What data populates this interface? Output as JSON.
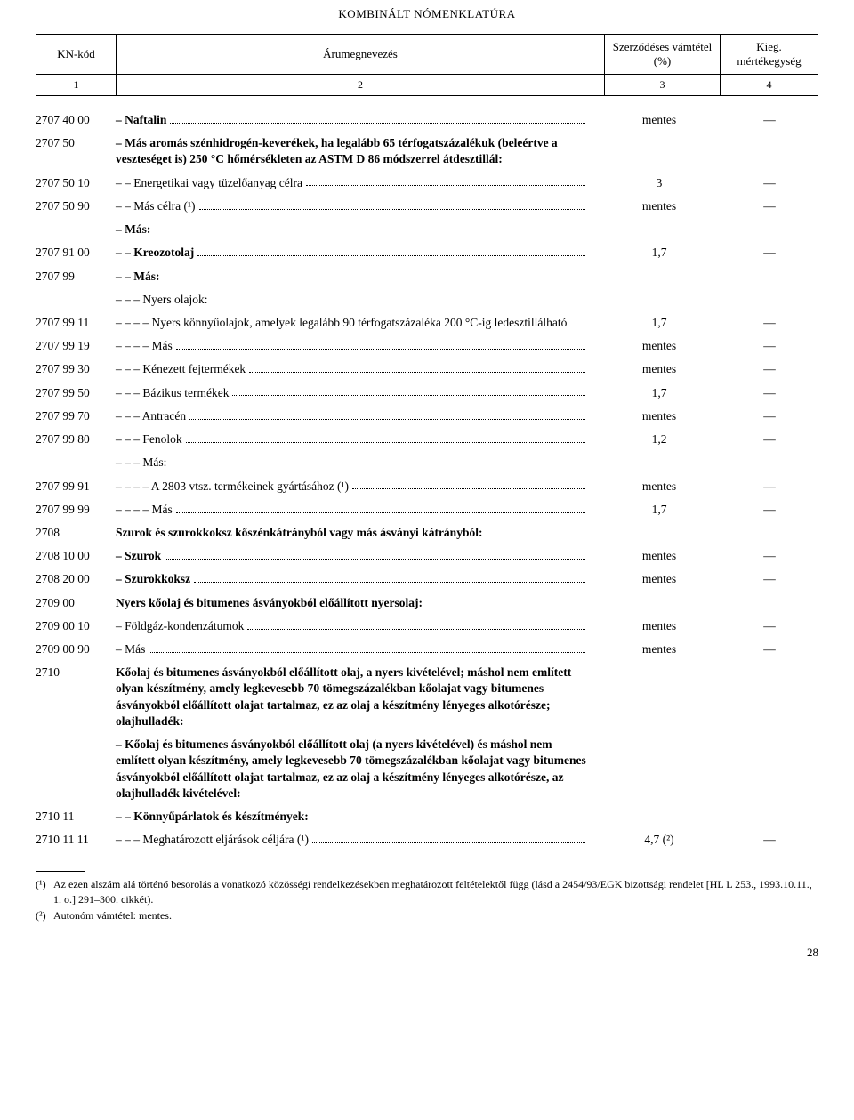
{
  "title": "KOMBINÁLT NÓMENKLATÚRA",
  "header": {
    "cols": [
      "KN-kód",
      "Árumegnevezés",
      "Szerződéses vámtétel (%)",
      "Kieg. mértékegység"
    ],
    "nums": [
      "1",
      "2",
      "3",
      "4"
    ]
  },
  "rows": [
    {
      "code": "2707 40 00",
      "desc": "– Naftalin",
      "duty": "mentes",
      "unit": "—",
      "dots": true,
      "bold": true
    },
    {
      "code": "2707 50",
      "desc": "– Más aromás szénhidrogén-keverékek, ha legalább 65 térfogatszázalékuk (beleértve a veszteséget is) 250 °C hőmérsékleten az ASTM D 86 módszerrel átdesztillál:",
      "duty": "",
      "unit": "",
      "dots": false,
      "bold": true
    },
    {
      "code": "2707 50 10",
      "desc": "– – Energetikai vagy tüzelőanyag célra",
      "duty": "3",
      "unit": "—",
      "dots": true,
      "bold": false
    },
    {
      "code": "2707 50 90",
      "desc": "– – Más célra (¹)",
      "duty": "mentes",
      "unit": "—",
      "dots": true,
      "bold": false
    },
    {
      "code": "",
      "desc": "– Más:",
      "duty": "",
      "unit": "",
      "dots": false,
      "bold": true
    },
    {
      "code": "2707 91 00",
      "desc": "– – Kreozotolaj",
      "duty": "1,7",
      "unit": "—",
      "dots": true,
      "bold": true
    },
    {
      "code": "2707 99",
      "desc": "– – Más:",
      "duty": "",
      "unit": "",
      "dots": false,
      "bold": true
    },
    {
      "code": "",
      "desc": "– – – Nyers olajok:",
      "duty": "",
      "unit": "",
      "dots": false,
      "bold": false
    },
    {
      "code": "2707 99 11",
      "desc": "– – – – Nyers könnyűolajok, amelyek legalább 90 térfogatszázaléka 200 °C-ig ledesztillálható",
      "duty": "1,7",
      "unit": "—",
      "dots": false,
      "bold": false
    },
    {
      "code": "2707 99 19",
      "desc": "– – – – Más",
      "duty": "mentes",
      "unit": "—",
      "dots": true,
      "bold": false
    },
    {
      "code": "2707 99 30",
      "desc": "– – – Kénezett fejtermékek",
      "duty": "mentes",
      "unit": "—",
      "dots": true,
      "bold": false
    },
    {
      "code": "2707 99 50",
      "desc": "– – – Bázikus termékek",
      "duty": "1,7",
      "unit": "—",
      "dots": true,
      "bold": false
    },
    {
      "code": "2707 99 70",
      "desc": "– – – Antracén",
      "duty": "mentes",
      "unit": "—",
      "dots": true,
      "bold": false
    },
    {
      "code": "2707 99 80",
      "desc": "– – – Fenolok",
      "duty": "1,2",
      "unit": "—",
      "dots": true,
      "bold": false
    },
    {
      "code": "",
      "desc": "– – – Más:",
      "duty": "",
      "unit": "",
      "dots": false,
      "bold": false
    },
    {
      "code": "2707 99 91",
      "desc": "– – – – A 2803 vtsz. termékeinek gyártásához (¹)",
      "duty": "mentes",
      "unit": "—",
      "dots": true,
      "bold": false
    },
    {
      "code": "2707 99 99",
      "desc": "– – – – Más",
      "duty": "1,7",
      "unit": "—",
      "dots": true,
      "bold": false
    },
    {
      "code": "2708",
      "desc": "Szurok és szurokkoksz kőszénkátrányból vagy más ásványi kátrányból:",
      "duty": "",
      "unit": "",
      "dots": false,
      "bold": true
    },
    {
      "code": "2708 10 00",
      "desc": "– Szurok",
      "duty": "mentes",
      "unit": "—",
      "dots": true,
      "bold": true
    },
    {
      "code": "2708 20 00",
      "desc": "– Szurokkoksz",
      "duty": "mentes",
      "unit": "—",
      "dots": true,
      "bold": true
    },
    {
      "code": "2709 00",
      "desc": "Nyers kőolaj és bitumenes ásványokból előállított nyersolaj:",
      "duty": "",
      "unit": "",
      "dots": false,
      "bold": true
    },
    {
      "code": "2709 00 10",
      "desc": "– Földgáz-kondenzátumok",
      "duty": "mentes",
      "unit": "—",
      "dots": true,
      "bold": false
    },
    {
      "code": "2709 00 90",
      "desc": "– Más",
      "duty": "mentes",
      "unit": "—",
      "dots": true,
      "bold": false
    },
    {
      "code": "2710",
      "desc": "Kőolaj és bitumenes ásványokból előállított olaj, a nyers kivételével; máshol nem említett olyan készítmény, amely legkevesebb 70 tömegszázalékban kőolajat vagy bitumenes ásványokból előállított olajat tartalmaz, ez az olaj a készítmény lényeges alkotórésze; olajhulladék:",
      "duty": "",
      "unit": "",
      "dots": false,
      "bold": true
    },
    {
      "code": "",
      "desc": "– Kőolaj és bitumenes ásványokból előállított olaj (a nyers kivételével) és máshol nem említett olyan készítmény, amely legkevesebb 70 tömegszázalékban kőolajat vagy bitumenes ásványokból előállított olajat tartalmaz, ez az olaj a készítmény lényeges alkotórésze, az olajhulladék kivételével:",
      "duty": "",
      "unit": "",
      "dots": false,
      "bold": true
    },
    {
      "code": "2710 11",
      "desc": "– – Könnyűpárlatok és készítmények:",
      "duty": "",
      "unit": "",
      "dots": false,
      "bold": true
    },
    {
      "code": "2710 11 11",
      "desc": "– – – Meghatározott eljárások céljára (¹)",
      "duty": "4,7 (²)",
      "unit": "—",
      "dots": true,
      "bold": false
    }
  ],
  "footnotes": [
    {
      "mark": "(¹)",
      "text": "Az ezen alszám alá történő besorolás a vonatkozó közösségi rendelkezésekben meghatározott feltételektől függ (lásd a 2454/93/EGK bizottsági rendelet [HL L 253., 1993.10.11., 1. o.] 291–300. cikkét)."
    },
    {
      "mark": "(²)",
      "text": "Autonóm vámtétel: mentes."
    }
  ],
  "page_number": "28"
}
